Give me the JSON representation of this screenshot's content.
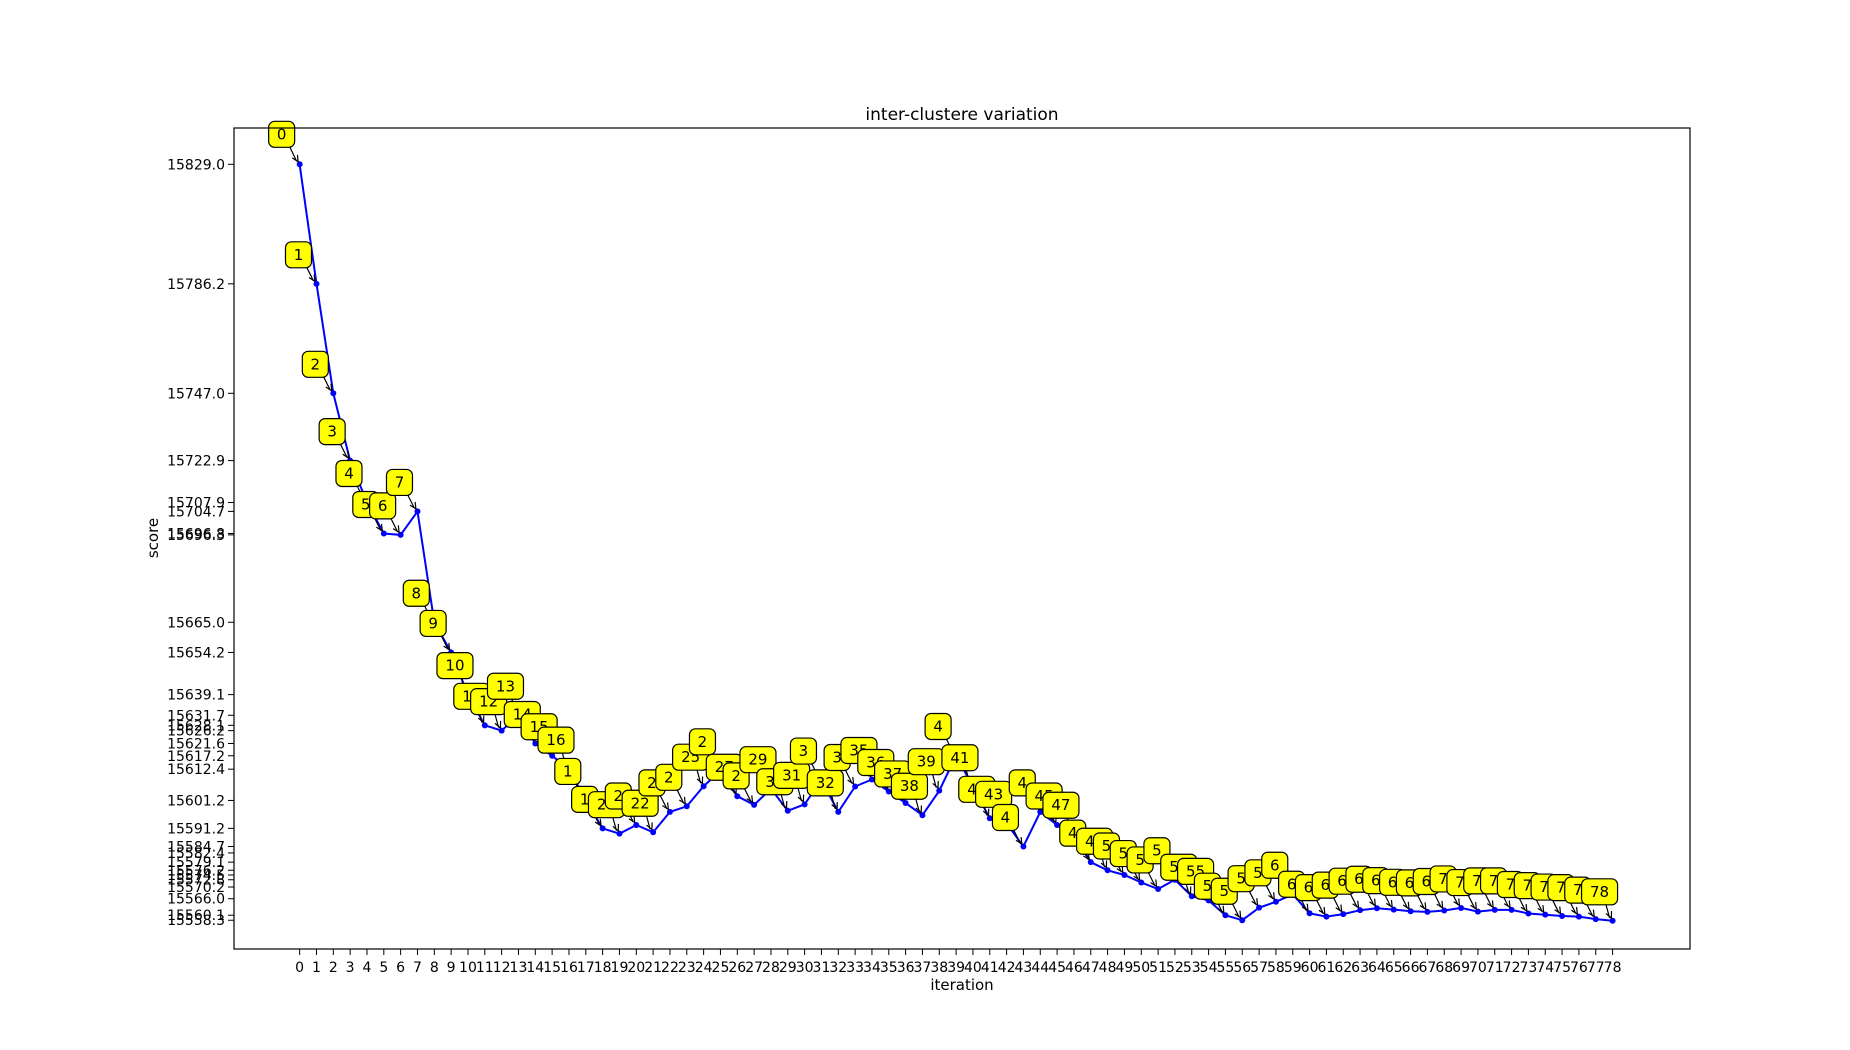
{
  "chart_data": {
    "type": "line",
    "title": "inter-clustere variation",
    "xlabel": "iteration",
    "ylabel": "score",
    "x": [
      0,
      1,
      2,
      3,
      4,
      5,
      6,
      7,
      8,
      9,
      10,
      11,
      12,
      13,
      14,
      15,
      16,
      17,
      18,
      19,
      20,
      21,
      22,
      23,
      24,
      25,
      26,
      27,
      28,
      29,
      30,
      31,
      32,
      33,
      34,
      35,
      36,
      37,
      38,
      39,
      40,
      41,
      42,
      43,
      44,
      45,
      46,
      47,
      48,
      49,
      50,
      51,
      52,
      53,
      54,
      55,
      56,
      57,
      58,
      59,
      60,
      61,
      62,
      63,
      64,
      65,
      66,
      67,
      68,
      69,
      70,
      71,
      72,
      73,
      74,
      75,
      76,
      77,
      78
    ],
    "y": [
      15829.0,
      15786.2,
      15747.0,
      15722.9,
      15707.9,
      15696.8,
      15696.3,
      15704.7,
      15665.0,
      15654.2,
      15639.1,
      15628.1,
      15626.2,
      15631.7,
      15621.6,
      15617.2,
      15612.4,
      15601.2,
      15591.2,
      15589.3,
      15592.4,
      15589.8,
      15597.1,
      15599.1,
      15606.3,
      15611.8,
      15602.7,
      15599.6,
      15605.4,
      15597.5,
      15599.8,
      15608.5,
      15597.1,
      15606.2,
      15608.7,
      15604.4,
      15600.3,
      15595.9,
      15604.7,
      15617.3,
      15606.1,
      15594.8,
      15593.0,
      15584.7,
      15597.1,
      15592.4,
      15589.1,
      15579.1,
      15576.2,
      15574.5,
      15571.8,
      15569.5,
      15572.8,
      15566.9,
      15565.4,
      15560.1,
      15558.3,
      15562.8,
      15564.9,
      15567.6,
      15560.8,
      15559.6,
      15560.5,
      15561.9,
      15562.6,
      15562.1,
      15561.5,
      15561.3,
      15561.8,
      15562.7,
      15561.4,
      15562.0,
      15562.0,
      15560.7,
      15560.3,
      15559.8,
      15559.6,
      15558.7,
      15558.1
    ],
    "ytick_labels": [
      "15829.0",
      "15786.2",
      "15747.0",
      "15722.9",
      "15707.9",
      "15704.7",
      "15696.8",
      "15696.3",
      "15665.0",
      "15654.2",
      "15639.1",
      "15631.7",
      "15628.1",
      "15626.2",
      "15621.6",
      "15617.2",
      "15612.4",
      "15601.2",
      "15591.2",
      "15584.7",
      "15582.4",
      "15579.1",
      "15576.2",
      "15574.5",
      "15572.8",
      "15570.2",
      "15566.0",
      "15560.1",
      "15558.3"
    ],
    "ylim": [
      15548,
      15842
    ],
    "xlim": [
      -3.9,
      82.6
    ],
    "line_color": "#0000ff",
    "annotation_box_color": "#ffff00",
    "annotation_labels": [
      "0",
      "1",
      "2",
      "3",
      "4",
      "5",
      "6",
      "7",
      "8",
      "9",
      "10",
      "11",
      "12",
      "13",
      "14",
      "15",
      "16",
      "1",
      "1",
      "20",
      "2",
      "22",
      "2",
      "2",
      "25",
      "2",
      "27",
      "2",
      "29",
      "30",
      "31",
      "3",
      "32",
      "3",
      "35",
      "36",
      "37",
      "38",
      "39",
      "4",
      "41",
      "42",
      "43",
      "4",
      "4",
      "45",
      "47",
      "4",
      "49",
      "5",
      "5",
      "5",
      "5",
      "54",
      "55",
      "5",
      "5",
      "5",
      "5",
      "6",
      "6",
      "6",
      "6",
      "6",
      "6",
      "6",
      "6",
      "6",
      "6",
      "7",
      "7",
      "7",
      "7",
      "7",
      "7",
      "7",
      "7",
      "7",
      "78"
    ],
    "annotation_offsets": [
      [
        -18,
        -30
      ],
      [
        -18,
        -29
      ],
      [
        -18,
        -29
      ],
      [
        -18,
        -29
      ],
      [
        -18,
        -29
      ],
      [
        -18,
        -29
      ],
      [
        -18,
        -29
      ],
      [
        -18,
        -29
      ],
      [
        -18,
        -29
      ],
      [
        -18,
        -29
      ],
      [
        -18,
        -29
      ],
      [
        -18,
        -29
      ],
      [
        -18,
        -29
      ],
      [
        -18,
        -29
      ],
      [
        -18,
        -29
      ],
      [
        -18,
        -29
      ],
      [
        -18,
        -29
      ],
      [
        -18,
        -29
      ],
      [
        -18,
        -29
      ],
      [
        -18,
        -29
      ],
      [
        -18,
        -29
      ],
      [
        -18,
        -29
      ],
      [
        -18,
        -29
      ],
      [
        -18,
        -29
      ],
      [
        -18,
        -29
      ],
      [
        -18,
        -29
      ],
      [
        -18,
        -29
      ],
      [
        -18,
        -29
      ],
      [
        -18,
        -29
      ],
      [
        -18,
        -29
      ],
      [
        -18,
        -29
      ],
      [
        -18,
        -29
      ],
      [
        -18,
        -29
      ],
      [
        -18,
        -29
      ],
      [
        -18,
        -29
      ],
      [
        -18,
        -29
      ],
      [
        -18,
        -29
      ],
      [
        -18,
        -29
      ],
      [
        -18,
        -29
      ],
      [
        -18,
        -29
      ],
      [
        -18,
        -29
      ],
      [
        -18,
        -29
      ],
      [
        -18,
        -29
      ],
      [
        -18,
        -29
      ],
      [
        -18,
        -29
      ],
      [
        -18,
        -29
      ],
      [
        -18,
        -29
      ],
      [
        -18,
        -29
      ],
      [
        -18,
        -29
      ],
      [
        -18,
        -29
      ],
      [
        -18,
        -29
      ],
      [
        -18,
        -29
      ],
      [
        -18,
        -29
      ],
      [
        -18,
        -29
      ],
      [
        -18,
        -29
      ],
      [
        -18,
        -29
      ],
      [
        -18,
        -29
      ],
      [
        -18,
        -29
      ],
      [
        -18,
        -29
      ],
      [
        -18,
        -29
      ],
      [
        -18,
        -29
      ],
      [
        -18,
        -29
      ],
      [
        -18,
        -29
      ],
      [
        -18,
        -29
      ],
      [
        -18,
        -29
      ],
      [
        -18,
        -29
      ],
      [
        -18,
        -29
      ],
      [
        -18,
        -29
      ],
      [
        -18,
        -29
      ],
      [
        -18,
        -29
      ],
      [
        -18,
        -29
      ],
      [
        -18,
        -29
      ],
      [
        -18,
        -29
      ],
      [
        -18,
        -29
      ],
      [
        -18,
        -29
      ],
      [
        -18,
        -29
      ],
      [
        -18,
        -29
      ],
      [
        -18,
        -29
      ],
      [
        -18,
        -29
      ]
    ]
  }
}
